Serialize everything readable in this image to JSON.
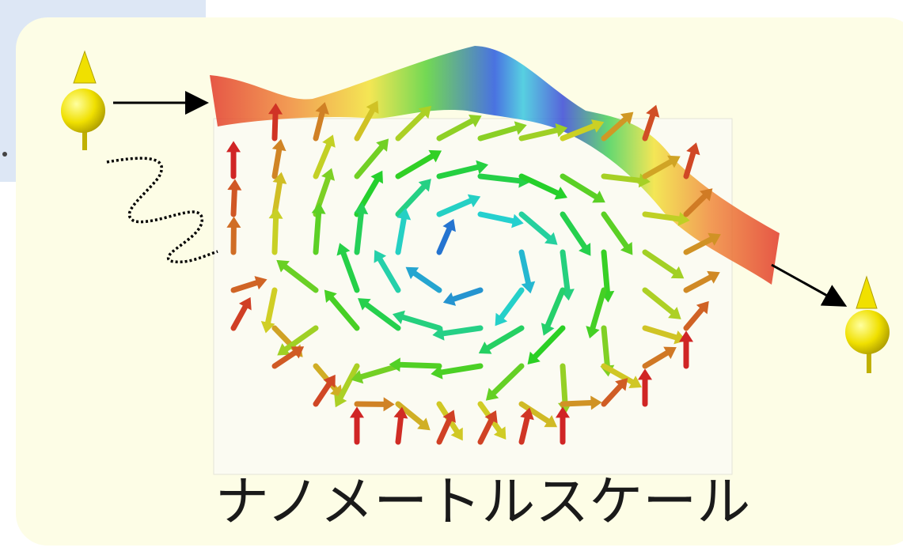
{
  "caption": "ナノメートルスケール"
}
